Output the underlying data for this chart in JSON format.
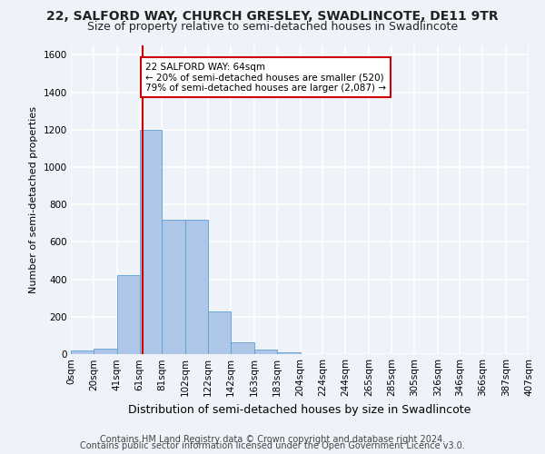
{
  "title1": "22, SALFORD WAY, CHURCH GRESLEY, SWADLINCOTE, DE11 9TR",
  "title2": "Size of property relative to semi-detached houses in Swadlincote",
  "xlabel": "Distribution of semi-detached houses by size in Swadlincote",
  "ylabel": "Number of semi-detached properties",
  "footnote1": "Contains HM Land Registry data © Crown copyright and database right 2024.",
  "footnote2": "Contains public sector information licensed under the Open Government Licence v3.0.",
  "bin_edges": [
    0,
    20,
    41,
    61,
    81,
    102,
    122,
    142,
    163,
    183,
    204,
    224,
    244,
    265,
    285,
    305,
    326,
    346,
    366,
    387,
    407
  ],
  "bin_labels": [
    "0sqm",
    "20sqm",
    "41sqm",
    "61sqm",
    "81sqm",
    "102sqm",
    "122sqm",
    "142sqm",
    "163sqm",
    "183sqm",
    "204sqm",
    "224sqm",
    "244sqm",
    "265sqm",
    "285sqm",
    "305sqm",
    "326sqm",
    "346sqm",
    "366sqm",
    "387sqm",
    "407sqm"
  ],
  "bar_heights": [
    20,
    30,
    420,
    1200,
    720,
    720,
    230,
    65,
    25,
    10,
    0,
    0,
    0,
    0,
    0,
    0,
    0,
    0,
    0,
    0
  ],
  "bar_color": "#aec6e8",
  "bar_edge_color": "#5a9fd4",
  "property_size": 64,
  "vline_color": "#cc0000",
  "annotation_text": "22 SALFORD WAY: 64sqm\n← 20% of semi-detached houses are smaller (520)\n79% of semi-detached houses are larger (2,087) →",
  "annotation_box_color": "#ffffff",
  "annotation_box_edge": "#cc0000",
  "ylim": [
    0,
    1650
  ],
  "yticks": [
    0,
    200,
    400,
    600,
    800,
    1000,
    1200,
    1400,
    1600
  ],
  "background_color": "#eef2f9",
  "grid_color": "#ffffff",
  "title1_fontsize": 10,
  "title2_fontsize": 9,
  "xlabel_fontsize": 9,
  "ylabel_fontsize": 8,
  "tick_fontsize": 7.5,
  "footnote_fontsize": 7
}
